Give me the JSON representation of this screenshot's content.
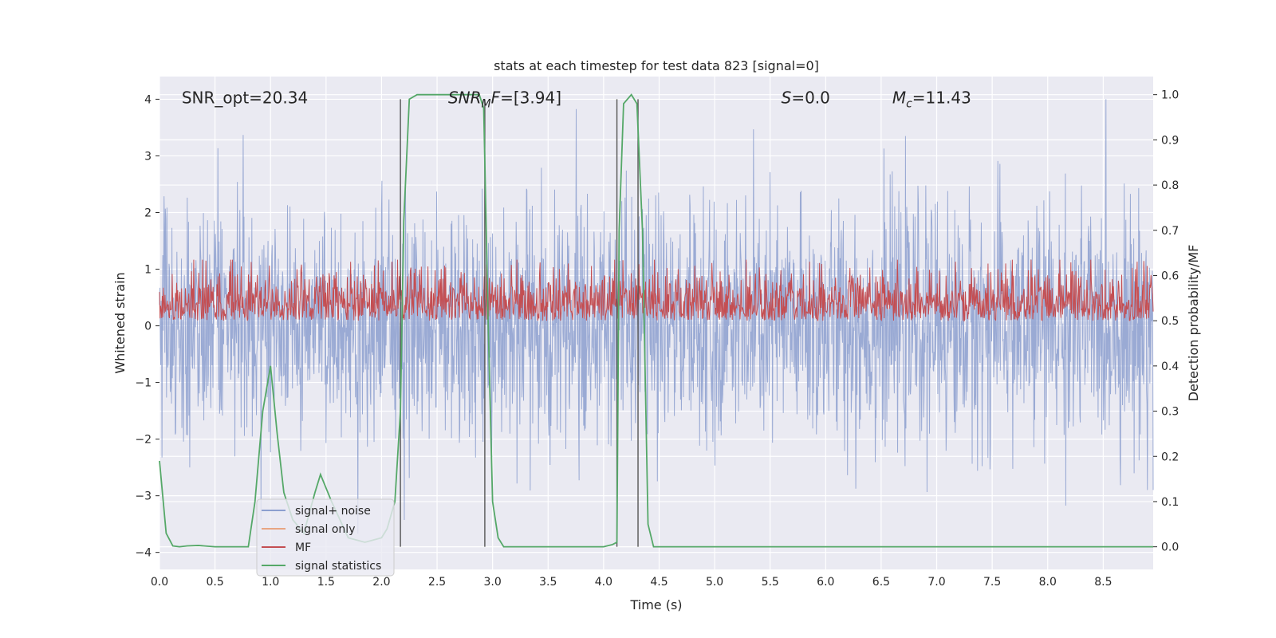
{
  "chart_data": {
    "type": "line",
    "title": "stats at each timestep for test data 823 [signal=0]",
    "xlabel": "Time (s)",
    "ylabel_left": "Whitened strain",
    "ylabel_right": "Detection probability/MF",
    "xlim": [
      0.0,
      8.95
    ],
    "ylim_left": [
      -4.3,
      4.4
    ],
    "ylim_right": [
      -0.05,
      1.04
    ],
    "x_ticks": [
      0.0,
      0.5,
      1.0,
      1.5,
      2.0,
      2.5,
      3.0,
      3.5,
      4.0,
      4.5,
      5.0,
      5.5,
      6.0,
      6.5,
      7.0,
      7.5,
      8.0,
      8.5
    ],
    "x_tick_labels": [
      "0.0",
      "0.5",
      "1.0",
      "1.5",
      "2.0",
      "2.5",
      "3.0",
      "3.5",
      "4.0",
      "4.5",
      "5.0",
      "5.5",
      "6.0",
      "6.5",
      "7.0",
      "7.5",
      "8.0",
      "8.5"
    ],
    "y_left_ticks": [
      -4,
      -3,
      -2,
      -1,
      0,
      1,
      2,
      3,
      4
    ],
    "y_left_tick_labels": [
      "−4",
      "−3",
      "−2",
      "−1",
      "0",
      "1",
      "2",
      "3",
      "4"
    ],
    "y_right_ticks": [
      0.0,
      0.1,
      0.2,
      0.3,
      0.4,
      0.5,
      0.6,
      0.7,
      0.8,
      0.9,
      1.0
    ],
    "y_right_tick_labels": [
      "0.0",
      "0.1",
      "0.2",
      "0.3",
      "0.4",
      "0.5",
      "0.6",
      "0.7",
      "0.8",
      "0.9",
      "1.0"
    ],
    "grid": true,
    "annotations": [
      {
        "html": "SNR_opt=20.34",
        "x": 0.2,
        "y": 4.0
      },
      {
        "html": "<tspan font-style=\"italic\">SNR</tspan><tspan font-style=\"italic\" font-size=\"14\" dy=\"5\">M</tspan><tspan font-style=\"italic\" dy=\"-5\">F</tspan>=[3.94]",
        "x": 2.6,
        "y": 4.0
      },
      {
        "html": "<tspan font-style=\"italic\">S</tspan>=0.0",
        "x": 5.6,
        "y": 4.0
      },
      {
        "html": "<tspan font-style=\"italic\">M</tspan><tspan font-style=\"italic\" font-size=\"14\" dy=\"5\">c</tspan><tspan dy=\"-5\">=11.43</tspan>",
        "x": 6.6,
        "y": 4.0
      }
    ],
    "vertical_lines": [
      2.17,
      2.93,
      4.12,
      4.31
    ],
    "vertical_line_range_left": [
      -3.9,
      4.0
    ],
    "legend": {
      "placement": "lower left",
      "entries": [
        {
          "label": "signal+ noise",
          "color": "#8c9fcf"
        },
        {
          "label": "signal only",
          "color": "#e8a583"
        },
        {
          "label": "MF",
          "color": "#c44e52"
        },
        {
          "label": "signal statistics",
          "color": "#55a868"
        }
      ]
    },
    "series": [
      {
        "name": "signal+ noise",
        "axis": "left",
        "color": "#8c9fcf",
        "style": "dense-noise",
        "approx_envelope": [
          -3.9,
          4.0
        ]
      },
      {
        "name": "signal only",
        "axis": "left",
        "color": "#e8a583",
        "style": "line",
        "values": []
      },
      {
        "name": "MF",
        "axis": "right",
        "color": "#c44e52",
        "style": "dense-noise",
        "approx_range": [
          0.5,
          0.62
        ]
      },
      {
        "name": "signal statistics",
        "axis": "right",
        "color": "#55a868",
        "style": "line",
        "x": [
          0.0,
          0.06,
          0.12,
          0.18,
          0.25,
          0.35,
          0.5,
          0.6,
          0.8,
          0.86,
          0.93,
          1.0,
          1.06,
          1.12,
          1.2,
          1.3,
          1.4,
          1.45,
          1.55,
          1.7,
          1.85,
          2.0,
          2.05,
          2.12,
          2.17,
          2.2,
          2.25,
          2.32,
          2.4,
          2.5,
          2.6,
          2.7,
          2.8,
          2.88,
          2.92,
          2.96,
          3.0,
          3.05,
          3.1,
          3.15,
          3.3,
          3.6,
          3.9,
          4.0,
          4.08,
          4.12,
          4.14,
          4.18,
          4.25,
          4.3,
          4.35,
          4.4,
          4.45,
          4.5,
          5.0,
          6.0,
          7.0,
          8.0,
          8.95
        ],
        "y": [
          0.19,
          0.03,
          0.002,
          0.0,
          0.002,
          0.003,
          0.0,
          0.0,
          0.0,
          0.1,
          0.3,
          0.4,
          0.25,
          0.12,
          0.06,
          0.03,
          0.12,
          0.16,
          0.1,
          0.02,
          0.01,
          0.02,
          0.04,
          0.1,
          0.3,
          0.72,
          0.99,
          1.0,
          1.0,
          1.0,
          1.0,
          1.0,
          1.0,
          1.0,
          0.97,
          0.5,
          0.1,
          0.02,
          0.0,
          0.0,
          0.0,
          0.0,
          0.0,
          0.0,
          0.005,
          0.01,
          0.7,
          0.98,
          1.0,
          0.98,
          0.7,
          0.05,
          0.0,
          0.0,
          0.0,
          0.0,
          0.0,
          0.0,
          0.0
        ]
      }
    ]
  }
}
